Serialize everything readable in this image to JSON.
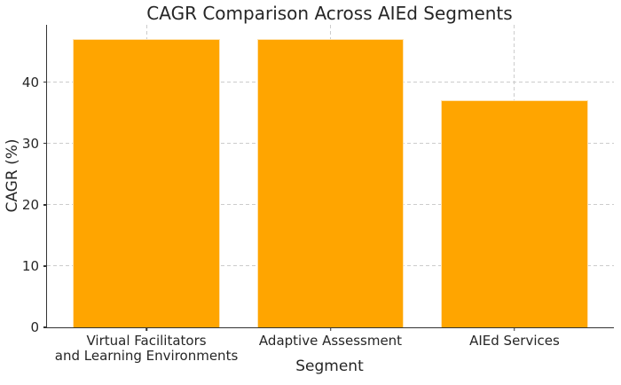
{
  "figure": {
    "background": "#FFFFFF"
  },
  "chart_data": {
    "type": "bar",
    "title": "CAGR Comparison Across AIEd Segments",
    "xlabel": "Segment",
    "ylabel": "CAGR (%)",
    "categories": [
      "Virtual Facilitators\nand Learning Environments",
      "Adaptive Assessment",
      "AIEd Services"
    ],
    "values": [
      47,
      47,
      37
    ],
    "yticks": [
      0,
      10,
      20,
      30,
      40
    ],
    "ylim": [
      0,
      49.35
    ],
    "xlim": [
      -0.54,
      2.54
    ],
    "bar_width": 0.8,
    "grid": true,
    "grid_style": "dashed",
    "legend": false,
    "colors": {
      "bar": "#FFA500",
      "bar_edge": "#FFFFFFB0",
      "grid": "#CCCCCC",
      "axis": "#333333",
      "text": "#262626",
      "background": "#FFFFFF"
    }
  }
}
